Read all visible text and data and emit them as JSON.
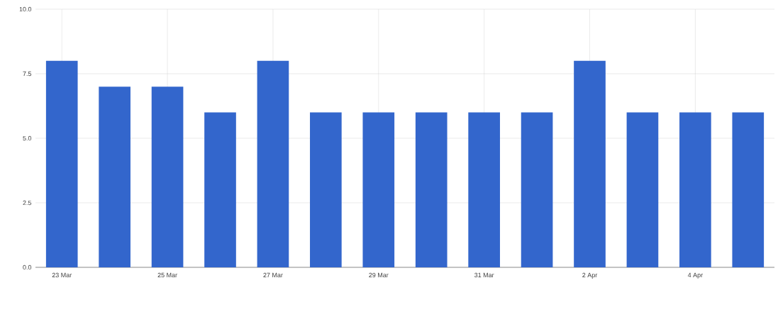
{
  "chart_data": {
    "type": "bar",
    "categories": [
      "23 Mar",
      null,
      "25 Mar",
      null,
      "27 Mar",
      null,
      "29 Mar",
      null,
      "31 Mar",
      null,
      "2 Apr",
      null,
      "4 Apr",
      null
    ],
    "values": [
      8,
      7,
      7,
      6,
      8,
      6,
      6,
      6,
      6,
      6,
      8,
      6,
      6,
      6
    ],
    "color": "#3366cc",
    "ylim": [
      0,
      10
    ],
    "yticks": [
      {
        "value": 0,
        "label": "0.0"
      },
      {
        "value": 2.5,
        "label": "2.5"
      },
      {
        "value": 5,
        "label": "5.0"
      },
      {
        "value": 7.5,
        "label": "7.5"
      },
      {
        "value": 10,
        "label": "10.0"
      }
    ],
    "grid": true
  }
}
